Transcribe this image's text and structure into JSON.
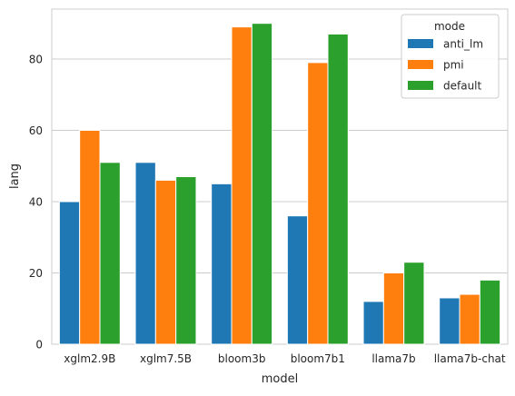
{
  "chart_data": {
    "type": "bar",
    "xlabel": "model",
    "ylabel": "lang",
    "categories": [
      "xglm2.9B",
      "xglm7.5B",
      "bloom3b",
      "bloom7b1",
      "llama7b",
      "llama7b-chat"
    ],
    "series": [
      {
        "name": "anti_lm",
        "color": "#1f77b4",
        "values": [
          40,
          51,
          45,
          36,
          12,
          13
        ]
      },
      {
        "name": "pmi",
        "color": "#ff7f0e",
        "values": [
          60,
          46,
          89,
          79,
          20,
          14
        ]
      },
      {
        "name": "default",
        "color": "#2ca02c",
        "values": [
          51,
          47,
          90,
          87,
          23,
          18
        ]
      }
    ],
    "ylim": [
      0,
      94
    ],
    "yticks": [
      0,
      20,
      40,
      60,
      80
    ],
    "grid": true,
    "legend": {
      "title": "mode",
      "position": "top-right"
    }
  }
}
